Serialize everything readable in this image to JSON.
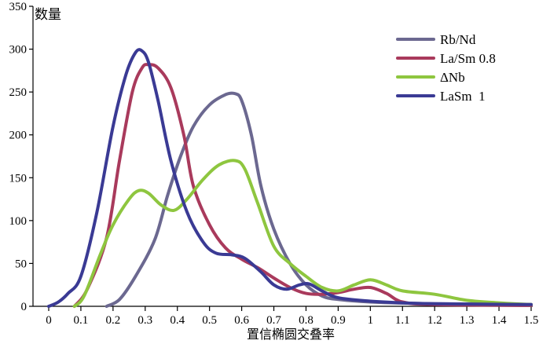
{
  "chart_data": {
    "type": "line",
    "title": "",
    "xlabel": "置信椭圆交叠率",
    "ylabel": "数量",
    "xlim": [
      0,
      1.5
    ],
    "ylim": [
      0,
      350
    ],
    "x_ticks": [
      "0",
      "0.1",
      "0.2",
      "0.3",
      "0.4",
      "0.5",
      "0.6",
      "0.7",
      "0.8",
      "0.9",
      "1",
      "1.1",
      "1.2",
      "1.3",
      "1.4",
      "1.5"
    ],
    "y_ticks": [
      "0",
      "50",
      "100",
      "150",
      "200",
      "250",
      "300",
      "350"
    ],
    "legend_position": "top-right",
    "series": [
      {
        "name": "Rb/Nd",
        "color": "#6b6890",
        "points": [
          [
            0.18,
            0
          ],
          [
            0.22,
            8
          ],
          [
            0.27,
            35
          ],
          [
            0.33,
            78
          ],
          [
            0.37,
            130
          ],
          [
            0.41,
            175
          ],
          [
            0.45,
            210
          ],
          [
            0.5,
            235
          ],
          [
            0.55,
            247
          ],
          [
            0.58,
            248
          ],
          [
            0.6,
            240
          ],
          [
            0.63,
            200
          ],
          [
            0.66,
            140
          ],
          [
            0.7,
            90
          ],
          [
            0.75,
            50
          ],
          [
            0.8,
            25
          ],
          [
            0.85,
            12
          ],
          [
            0.9,
            8
          ],
          [
            1.0,
            5
          ],
          [
            1.2,
            3
          ],
          [
            1.5,
            2
          ]
        ]
      },
      {
        "name": "La/Sm 0.8",
        "color": "#a93a5c",
        "points": [
          [
            0.08,
            0
          ],
          [
            0.12,
            20
          ],
          [
            0.18,
            80
          ],
          [
            0.22,
            170
          ],
          [
            0.26,
            250
          ],
          [
            0.29,
            278
          ],
          [
            0.31,
            282
          ],
          [
            0.34,
            278
          ],
          [
            0.38,
            255
          ],
          [
            0.42,
            200
          ],
          [
            0.45,
            140
          ],
          [
            0.5,
            95
          ],
          [
            0.55,
            68
          ],
          [
            0.6,
            55
          ],
          [
            0.65,
            45
          ],
          [
            0.7,
            33
          ],
          [
            0.75,
            22
          ],
          [
            0.8,
            15
          ],
          [
            0.85,
            14
          ],
          [
            0.9,
            16
          ],
          [
            0.95,
            20
          ],
          [
            1.0,
            22
          ],
          [
            1.05,
            15
          ],
          [
            1.1,
            5
          ],
          [
            1.2,
            2
          ],
          [
            1.5,
            1
          ]
        ]
      },
      {
        "name": "ΔNb",
        "color": "#8ec63f",
        "points": [
          [
            0.08,
            0
          ],
          [
            0.11,
            12
          ],
          [
            0.16,
            60
          ],
          [
            0.2,
            95
          ],
          [
            0.25,
            125
          ],
          [
            0.28,
            135
          ],
          [
            0.31,
            132
          ],
          [
            0.35,
            118
          ],
          [
            0.39,
            112
          ],
          [
            0.43,
            125
          ],
          [
            0.48,
            148
          ],
          [
            0.53,
            165
          ],
          [
            0.58,
            170
          ],
          [
            0.61,
            160
          ],
          [
            0.65,
            120
          ],
          [
            0.7,
            70
          ],
          [
            0.75,
            50
          ],
          [
            0.8,
            35
          ],
          [
            0.85,
            22
          ],
          [
            0.9,
            18
          ],
          [
            0.95,
            25
          ],
          [
            1.0,
            31
          ],
          [
            1.05,
            25
          ],
          [
            1.1,
            18
          ],
          [
            1.2,
            14
          ],
          [
            1.3,
            7
          ],
          [
            1.4,
            4
          ],
          [
            1.5,
            2
          ]
        ]
      },
      {
        "name": "LaSm  1",
        "color": "#3a3a94",
        "points": [
          [
            0.0,
            0
          ],
          [
            0.03,
            5
          ],
          [
            0.06,
            15
          ],
          [
            0.1,
            35
          ],
          [
            0.15,
            110
          ],
          [
            0.2,
            210
          ],
          [
            0.24,
            270
          ],
          [
            0.27,
            296
          ],
          [
            0.29,
            298
          ],
          [
            0.31,
            285
          ],
          [
            0.34,
            240
          ],
          [
            0.38,
            170
          ],
          [
            0.43,
            110
          ],
          [
            0.48,
            75
          ],
          [
            0.52,
            62
          ],
          [
            0.57,
            60
          ],
          [
            0.61,
            56
          ],
          [
            0.66,
            40
          ],
          [
            0.7,
            25
          ],
          [
            0.74,
            20
          ],
          [
            0.78,
            25
          ],
          [
            0.81,
            26
          ],
          [
            0.85,
            18
          ],
          [
            0.9,
            10
          ],
          [
            1.0,
            6
          ],
          [
            1.1,
            4
          ],
          [
            1.2,
            3
          ],
          [
            1.5,
            2
          ]
        ]
      }
    ]
  }
}
